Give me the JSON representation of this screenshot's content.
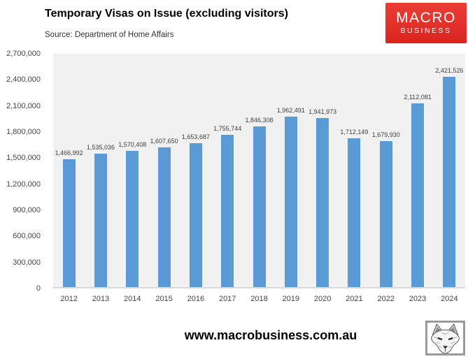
{
  "header": {
    "title": "Temporary Visas on Issue (excluding visitors)",
    "source": "Source: Department of Home Affairs"
  },
  "logo": {
    "line1": "MACRO",
    "line2": "BUSINESS",
    "background_color": "#e0302c",
    "text_color": "#ffffff"
  },
  "chart_data": {
    "type": "bar",
    "title": "Temporary Visas on Issue (excluding visitors)",
    "source": "Source: Department of Home Affairs",
    "categories": [
      "2012",
      "2013",
      "2014",
      "2015",
      "2016",
      "2017",
      "2018",
      "2019",
      "2020",
      "2021",
      "2022",
      "2023",
      "2024"
    ],
    "values": [
      1466992,
      1535036,
      1570408,
      1607650,
      1653687,
      1755744,
      1846308,
      1962491,
      1941973,
      1712149,
      1679930,
      2112081,
      2421526
    ],
    "value_labels": [
      "1,466,992",
      "1,535,036",
      "1,570,408",
      "1,607,650",
      "1,653,687",
      "1,755,744",
      "1,846,308",
      "1,962,491",
      "1,941,973",
      "1,712,149",
      "1,679,930",
      "2,112,081",
      "2,421,526"
    ],
    "y_ticks": {
      "values": [
        0,
        300000,
        600000,
        900000,
        1200000,
        1500000,
        1800000,
        2100000,
        2400000,
        2700000
      ],
      "labels": [
        "0",
        "300,000",
        "600,000",
        "900,000",
        "1,200,000",
        "1,500,000",
        "1,800,000",
        "2,100,000",
        "2,400,000",
        "2,700,000"
      ]
    },
    "xlabel": "",
    "ylabel": "",
    "ylim": [
      0,
      2700000
    ],
    "grid": false,
    "legend": false,
    "bar_color": "#5b9bd5",
    "plot_background": "#f1f1f2",
    "axis_line_color": "#d9d9d9"
  },
  "footer": {
    "url": "www.macrobusiness.com.au"
  },
  "icons": {
    "fox": "fox-sketch-logo"
  }
}
